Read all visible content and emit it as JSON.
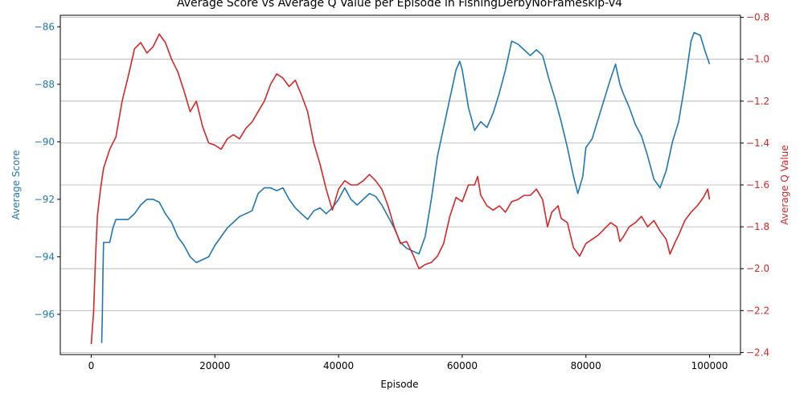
{
  "chart_data": {
    "type": "line",
    "title": "Average Score vs Average Q Value per Episode in FishingDerbyNoFrameskip-v4",
    "xlabel": "Episode",
    "ylabel_left": "Average Score",
    "ylabel_right": "Average Q Value",
    "xlim": [
      -5000,
      105000
    ],
    "ylim_left": [
      -97.4,
      -85.6
    ],
    "ylim_right": [
      -2.41,
      -0.79
    ],
    "x_ticks": [
      0,
      20000,
      40000,
      60000,
      80000,
      100000
    ],
    "x_tick_labels": [
      "0",
      "20000",
      "40000",
      "60000",
      "80000",
      "100000"
    ],
    "left_ticks": [
      -96,
      -94,
      -92,
      -90,
      -88,
      -86
    ],
    "left_tick_labels": [
      "−96",
      "−94",
      "−92",
      "−90",
      "−88",
      "−86"
    ],
    "right_ticks": [
      -2.4,
      -2.2,
      -2.0,
      -1.8,
      -1.6,
      -1.4,
      -1.2,
      -1.0,
      -0.8
    ],
    "right_tick_labels": [
      "−2.4",
      "−2.2",
      "−2.0",
      "−1.8",
      "−1.6",
      "−1.4",
      "−1.2",
      "−1.0",
      "−0.8"
    ],
    "grid": "horizontal, right axis",
    "series": [
      {
        "color": "#1f77b4",
        "axis": "left",
        "points": [
          [
            1700,
            -97.0
          ],
          [
            1800,
            -96.0
          ],
          [
            1900,
            -94.5
          ],
          [
            2000,
            -93.5
          ],
          [
            3000,
            -93.5
          ],
          [
            3500,
            -93.0
          ],
          [
            4000,
            -92.7
          ],
          [
            6000,
            -92.7
          ],
          [
            7000,
            -92.5
          ],
          [
            8000,
            -92.2
          ],
          [
            9000,
            -92.0
          ],
          [
            10000,
            -92.0
          ],
          [
            11000,
            -92.1
          ],
          [
            12000,
            -92.5
          ],
          [
            13000,
            -92.8
          ],
          [
            14000,
            -93.3
          ],
          [
            15000,
            -93.6
          ],
          [
            16000,
            -94.0
          ],
          [
            17000,
            -94.2
          ],
          [
            18000,
            -94.1
          ],
          [
            19000,
            -94.0
          ],
          [
            20000,
            -93.6
          ],
          [
            21000,
            -93.3
          ],
          [
            22000,
            -93.0
          ],
          [
            23000,
            -92.8
          ],
          [
            24000,
            -92.6
          ],
          [
            25000,
            -92.5
          ],
          [
            26000,
            -92.4
          ],
          [
            27000,
            -91.8
          ],
          [
            28000,
            -91.6
          ],
          [
            29000,
            -91.6
          ],
          [
            30000,
            -91.7
          ],
          [
            31000,
            -91.6
          ],
          [
            32000,
            -92.0
          ],
          [
            33000,
            -92.3
          ],
          [
            34000,
            -92.5
          ],
          [
            35000,
            -92.7
          ],
          [
            36000,
            -92.4
          ],
          [
            37000,
            -92.3
          ],
          [
            38000,
            -92.5
          ],
          [
            39000,
            -92.3
          ],
          [
            40000,
            -92.0
          ],
          [
            41000,
            -91.6
          ],
          [
            42000,
            -92.0
          ],
          [
            43000,
            -92.2
          ],
          [
            44000,
            -92.0
          ],
          [
            45000,
            -91.8
          ],
          [
            46000,
            -91.9
          ],
          [
            47000,
            -92.2
          ],
          [
            48000,
            -92.6
          ],
          [
            49000,
            -93.0
          ],
          [
            50000,
            -93.5
          ],
          [
            51000,
            -93.7
          ],
          [
            52000,
            -93.8
          ],
          [
            53000,
            -93.9
          ],
          [
            54000,
            -93.3
          ],
          [
            55000,
            -92.0
          ],
          [
            56000,
            -90.5
          ],
          [
            57000,
            -89.5
          ],
          [
            58000,
            -88.5
          ],
          [
            59000,
            -87.5
          ],
          [
            59600,
            -87.2
          ],
          [
            60000,
            -87.5
          ],
          [
            61000,
            -88.8
          ],
          [
            62000,
            -89.6
          ],
          [
            63000,
            -89.3
          ],
          [
            64000,
            -89.5
          ],
          [
            65000,
            -89.0
          ],
          [
            66000,
            -88.3
          ],
          [
            67000,
            -87.5
          ],
          [
            68000,
            -86.5
          ],
          [
            69000,
            -86.6
          ],
          [
            70000,
            -86.8
          ],
          [
            71000,
            -87.0
          ],
          [
            72000,
            -86.8
          ],
          [
            73000,
            -87.0
          ],
          [
            74000,
            -87.8
          ],
          [
            75000,
            -88.5
          ],
          [
            76000,
            -89.3
          ],
          [
            77000,
            -90.2
          ],
          [
            78000,
            -91.2
          ],
          [
            78700,
            -91.8
          ],
          [
            79500,
            -91.2
          ],
          [
            80000,
            -90.2
          ],
          [
            81000,
            -89.9
          ],
          [
            82000,
            -89.2
          ],
          [
            83000,
            -88.5
          ],
          [
            84000,
            -87.8
          ],
          [
            84800,
            -87.3
          ],
          [
            85500,
            -88.0
          ],
          [
            86000,
            -88.3
          ],
          [
            87000,
            -88.8
          ],
          [
            88000,
            -89.4
          ],
          [
            89000,
            -89.8
          ],
          [
            90000,
            -90.5
          ],
          [
            91000,
            -91.3
          ],
          [
            92000,
            -91.6
          ],
          [
            93000,
            -91.0
          ],
          [
            94000,
            -90.0
          ],
          [
            95000,
            -89.3
          ],
          [
            96000,
            -88.0
          ],
          [
            97000,
            -86.5
          ],
          [
            97500,
            -86.2
          ],
          [
            98500,
            -86.3
          ],
          [
            99200,
            -86.8
          ],
          [
            100000,
            -87.3
          ]
        ]
      },
      {
        "color": "#d62728",
        "axis": "right",
        "points": [
          [
            0,
            -2.36
          ],
          [
            400,
            -2.2
          ],
          [
            700,
            -1.95
          ],
          [
            1000,
            -1.75
          ],
          [
            1500,
            -1.62
          ],
          [
            2000,
            -1.52
          ],
          [
            3000,
            -1.43
          ],
          [
            4000,
            -1.37
          ],
          [
            5000,
            -1.2
          ],
          [
            6000,
            -1.08
          ],
          [
            7000,
            -0.95
          ],
          [
            8000,
            -0.92
          ],
          [
            9000,
            -0.97
          ],
          [
            10000,
            -0.94
          ],
          [
            11000,
            -0.88
          ],
          [
            12000,
            -0.92
          ],
          [
            13000,
            -1.0
          ],
          [
            14000,
            -1.06
          ],
          [
            15000,
            -1.15
          ],
          [
            16000,
            -1.25
          ],
          [
            17000,
            -1.2
          ],
          [
            18000,
            -1.32
          ],
          [
            19000,
            -1.4
          ],
          [
            20000,
            -1.41
          ],
          [
            21000,
            -1.43
          ],
          [
            22000,
            -1.38
          ],
          [
            23000,
            -1.36
          ],
          [
            24000,
            -1.38
          ],
          [
            25000,
            -1.33
          ],
          [
            26000,
            -1.3
          ],
          [
            27000,
            -1.25
          ],
          [
            28000,
            -1.2
          ],
          [
            29000,
            -1.12
          ],
          [
            30000,
            -1.07
          ],
          [
            31000,
            -1.09
          ],
          [
            32000,
            -1.13
          ],
          [
            33000,
            -1.1
          ],
          [
            34000,
            -1.17
          ],
          [
            35000,
            -1.25
          ],
          [
            36000,
            -1.4
          ],
          [
            37000,
            -1.5
          ],
          [
            38000,
            -1.62
          ],
          [
            39000,
            -1.72
          ],
          [
            40000,
            -1.62
          ],
          [
            41000,
            -1.58
          ],
          [
            42000,
            -1.6
          ],
          [
            43000,
            -1.6
          ],
          [
            44000,
            -1.58
          ],
          [
            45000,
            -1.55
          ],
          [
            46000,
            -1.58
          ],
          [
            47000,
            -1.62
          ],
          [
            48000,
            -1.7
          ],
          [
            49000,
            -1.8
          ],
          [
            50000,
            -1.88
          ],
          [
            51000,
            -1.87
          ],
          [
            52000,
            -1.93
          ],
          [
            53000,
            -2.0
          ],
          [
            54000,
            -1.98
          ],
          [
            55000,
            -1.97
          ],
          [
            56000,
            -1.94
          ],
          [
            57000,
            -1.88
          ],
          [
            58000,
            -1.75
          ],
          [
            59000,
            -1.66
          ],
          [
            60000,
            -1.68
          ],
          [
            61000,
            -1.6
          ],
          [
            62000,
            -1.6
          ],
          [
            62500,
            -1.56
          ],
          [
            63000,
            -1.65
          ],
          [
            64000,
            -1.7
          ],
          [
            65000,
            -1.72
          ],
          [
            66000,
            -1.7
          ],
          [
            67000,
            -1.73
          ],
          [
            68000,
            -1.68
          ],
          [
            69000,
            -1.67
          ],
          [
            70000,
            -1.65
          ],
          [
            71000,
            -1.65
          ],
          [
            72000,
            -1.62
          ],
          [
            73000,
            -1.67
          ],
          [
            73800,
            -1.8
          ],
          [
            74500,
            -1.73
          ],
          [
            75500,
            -1.7
          ],
          [
            76000,
            -1.76
          ],
          [
            77000,
            -1.78
          ],
          [
            78000,
            -1.9
          ],
          [
            79000,
            -1.94
          ],
          [
            80000,
            -1.88
          ],
          [
            81000,
            -1.86
          ],
          [
            82000,
            -1.84
          ],
          [
            83000,
            -1.81
          ],
          [
            84000,
            -1.78
          ],
          [
            85000,
            -1.8
          ],
          [
            85500,
            -1.87
          ],
          [
            86000,
            -1.85
          ],
          [
            87000,
            -1.8
          ],
          [
            88000,
            -1.78
          ],
          [
            89000,
            -1.75
          ],
          [
            90000,
            -1.8
          ],
          [
            91000,
            -1.77
          ],
          [
            92000,
            -1.82
          ],
          [
            93000,
            -1.86
          ],
          [
            93600,
            -1.93
          ],
          [
            94500,
            -1.87
          ],
          [
            95000,
            -1.84
          ],
          [
            96000,
            -1.77
          ],
          [
            97000,
            -1.73
          ],
          [
            98000,
            -1.7
          ],
          [
            99000,
            -1.66
          ],
          [
            99700,
            -1.62
          ],
          [
            100000,
            -1.67
          ]
        ]
      }
    ]
  }
}
